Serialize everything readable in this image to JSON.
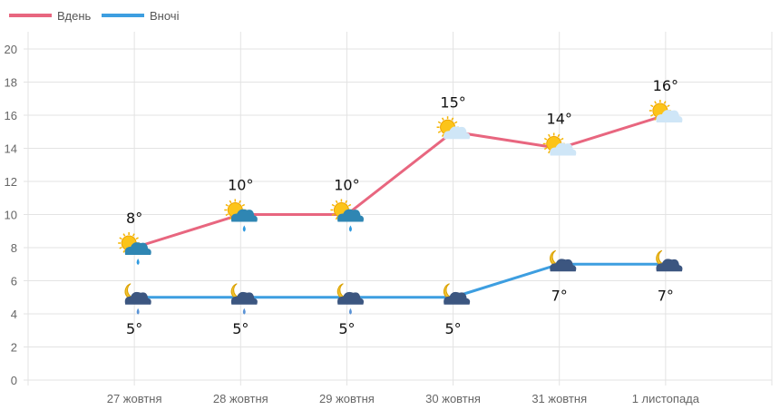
{
  "chart_data": {
    "type": "line",
    "categories": [
      "27 жовтня",
      "28 жовтня",
      "29 жовтня",
      "30 жовтня",
      "31 жовтня",
      "1 листопада"
    ],
    "series": [
      {
        "name": "Вдень",
        "color": "#e8667f",
        "values": [
          8,
          10,
          10,
          15,
          14,
          16
        ],
        "labels": [
          "8°",
          "10°",
          "10°",
          "15°",
          "14°",
          "16°"
        ],
        "icons": [
          "sun-cloud-rain",
          "sun-cloud-rain",
          "sun-cloud-rain",
          "sun-cloud",
          "sun-cloud",
          "sun-cloud"
        ]
      },
      {
        "name": "Вночі",
        "color": "#3d9ee0",
        "values": [
          5,
          5,
          5,
          5,
          7,
          7
        ],
        "labels": [
          "5°",
          "5°",
          "5°",
          "5°",
          "7°",
          "7°"
        ],
        "icons": [
          "moon-cloud-rain",
          "moon-cloud-rain",
          "moon-cloud-rain",
          "moon-cloud",
          "moon-cloud",
          "moon-cloud"
        ]
      }
    ],
    "ylim": [
      0,
      20
    ],
    "yticks": [
      0,
      2,
      4,
      6,
      8,
      10,
      12,
      14,
      16,
      18,
      20
    ],
    "grid": true,
    "legend": "top-left"
  }
}
